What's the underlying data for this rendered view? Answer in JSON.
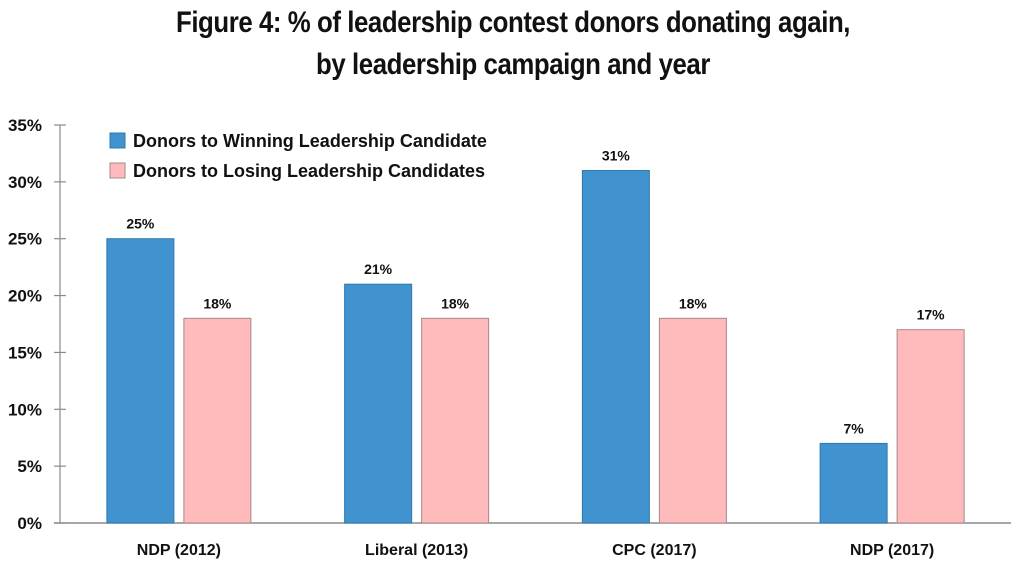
{
  "chart_data": {
    "type": "bar",
    "title_lines": [
      "Figure 4: % of leadership contest donors donating again,",
      "by leadership campaign and year"
    ],
    "title": "Figure 4: % of leadership contest donors donating again, by leadership campaign and year",
    "xlabel": "",
    "ylabel": "",
    "categories": [
      "NDP (2012)",
      "Liberal (2013)",
      "CPC (2017)",
      "NDP (2017)"
    ],
    "series": [
      {
        "name": "Donors to Winning Leadership Candidate",
        "color": "#4193CF",
        "values": [
          25,
          21,
          31,
          7
        ],
        "labels": [
          "25%",
          "21%",
          "31%",
          "7%"
        ]
      },
      {
        "name": "Donors to Losing Leadership Candidates",
        "color": "#FFBBBB",
        "values": [
          18,
          18,
          18,
          17
        ],
        "labels": [
          "18%",
          "18%",
          "18%",
          "17%"
        ]
      }
    ],
    "ylim": [
      0,
      35
    ],
    "yticks": [
      0,
      5,
      10,
      15,
      20,
      25,
      30,
      35
    ],
    "ytick_labels": [
      "0%",
      "5%",
      "10%",
      "15%",
      "20%",
      "25%",
      "30%",
      "35%"
    ],
    "grid": false,
    "legend_position": "top-left"
  }
}
